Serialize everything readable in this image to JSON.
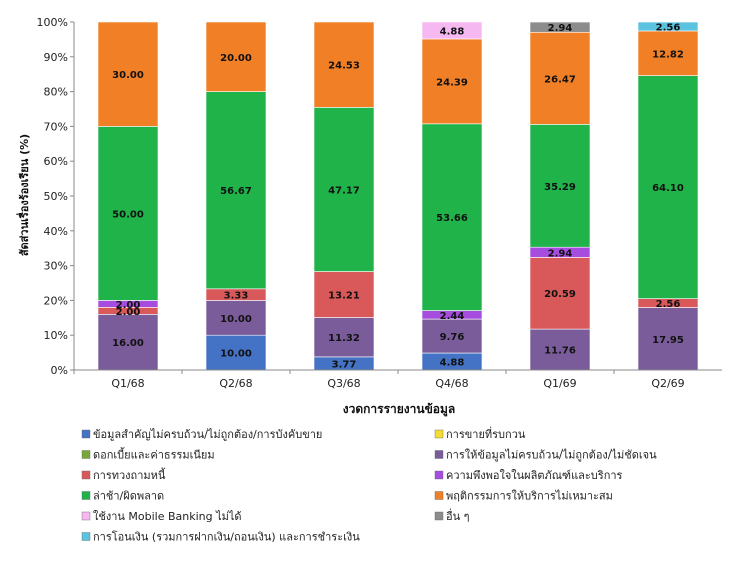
{
  "chart_data": {
    "type": "bar",
    "stacked": true,
    "categories": [
      "Q1/68",
      "Q2/68",
      "Q3/68",
      "Q4/68",
      "Q1/69",
      "Q2/69"
    ],
    "xlabel": "งวดการรายงานข้อมูล",
    "ylabel": "สัดส่วนเรื่องร้องเรียน (%)",
    "ylim": [
      0,
      100
    ],
    "yticks": [
      "0%",
      "10%",
      "20%",
      "30%",
      "40%",
      "50%",
      "60%",
      "70%",
      "80%",
      "90%",
      "100%"
    ],
    "grid": false,
    "legend_position": "bottom",
    "series": [
      {
        "name": "ข้อมูลสำคัญไม่ครบถ้วน/ไม่ถูกต้อง/การบังคับขาย",
        "color": "#4472C4",
        "values": [
          0,
          10.0,
          3.77,
          4.88,
          0,
          0
        ],
        "labels": [
          "",
          "10.00",
          "3.77",
          "4.88",
          "",
          ""
        ]
      },
      {
        "name": "การขายที่รบกวน",
        "color": "#F2DD30",
        "values": [
          0,
          0,
          0,
          0,
          0,
          0
        ],
        "labels": [
          "",
          "",
          "",
          "",
          "",
          ""
        ]
      },
      {
        "name": "ดอกเบี้ยและค่าธรรมเนียม",
        "color": "#77A83A",
        "values": [
          0,
          0,
          0,
          0,
          0,
          0
        ],
        "labels": [
          "",
          "",
          "",
          "",
          "",
          ""
        ]
      },
      {
        "name": "การให้ข้อมูลไม่ครบถ้วน/ไม่ถูกต้อง/ไม่ชัดเจน",
        "color": "#7B5C9A",
        "values": [
          16.0,
          10.0,
          11.32,
          9.76,
          11.76,
          17.95
        ],
        "labels": [
          "16.00",
          "10.00",
          "11.32",
          "9.76",
          "11.76",
          "17.95"
        ]
      },
      {
        "name": "การทวงถามหนี้",
        "color": "#D9595A",
        "values": [
          2.0,
          3.33,
          13.21,
          0,
          20.59,
          2.56
        ],
        "labels": [
          "2.00",
          "3.33",
          "13.21",
          "",
          "20.59",
          "2.56"
        ]
      },
      {
        "name": "ความพึงพอใจในผลิตภัณฑ์และบริการ",
        "color": "#A64DE0",
        "values": [
          2.0,
          0,
          0,
          2.44,
          2.94,
          0
        ],
        "labels": [
          "2.00",
          "",
          "",
          "2.44",
          "2.94",
          ""
        ]
      },
      {
        "name": "ล่าช้า/ผิดพลาด",
        "color": "#1FB34A",
        "values": [
          50.0,
          56.67,
          47.17,
          53.66,
          35.29,
          64.1
        ],
        "labels": [
          "50.00",
          "56.67",
          "47.17",
          "53.66",
          "35.29",
          "64.10"
        ]
      },
      {
        "name": "พฤติกรรมการให้บริการไม่เหมาะสม",
        "color": "#F07F26",
        "values": [
          30.0,
          20.0,
          24.53,
          24.39,
          26.47,
          12.82
        ],
        "labels": [
          "30.00",
          "20.00",
          "24.53",
          "24.39",
          "26.47",
          "12.82"
        ]
      },
      {
        "name": "ใช้งาน Mobile Banking ไม่ได้",
        "color": "#F5B8F0",
        "values": [
          0,
          0,
          0,
          4.88,
          0,
          0
        ],
        "labels": [
          "",
          "",
          "",
          "4.88",
          "",
          ""
        ]
      },
      {
        "name": "อื่น ๆ",
        "color": "#8C8C8C",
        "values": [
          0,
          0,
          0,
          0,
          2.94,
          0
        ],
        "labels": [
          "",
          "",
          "",
          "",
          "2.94",
          ""
        ]
      },
      {
        "name": "การโอนเงิน (รวมการฝากเงิน/ถอนเงิน) และการชำระเงิน",
        "color": "#5BC3E0",
        "values": [
          0,
          0,
          0,
          0,
          0,
          2.56
        ],
        "labels": [
          "",
          "",
          "",
          "",
          "",
          "2.56"
        ]
      }
    ]
  }
}
